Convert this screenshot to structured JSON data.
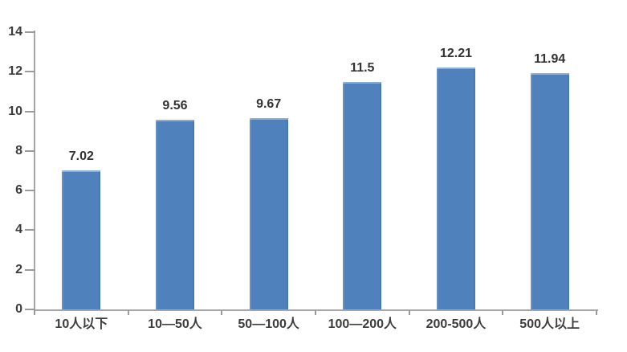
{
  "chart_style": {
    "bar_color": "#4f81bd",
    "axis_color": "#a6a6a6",
    "tick_color": "#9a9a9a",
    "label_color": "#3d3d3d",
    "value_label_color": "#333333",
    "background": "#ffffff"
  },
  "chart_data": {
    "type": "bar",
    "title": "",
    "xlabel": "",
    "ylabel": "",
    "categories": [
      "10人以下",
      "10—50人",
      "50—100人",
      "100—200人",
      "200-500人",
      "500人以上"
    ],
    "values": [
      7.02,
      9.56,
      9.67,
      11.5,
      12.21,
      11.94
    ],
    "value_labels": [
      "7.02",
      "9.56",
      "9.67",
      "11.5",
      "12.21",
      "11.94"
    ],
    "ylim": [
      0,
      14
    ],
    "yticks": [
      0,
      2,
      4,
      6,
      8,
      10,
      12,
      14
    ],
    "ytick_labels": [
      "0",
      "2",
      "4",
      "6",
      "8",
      "10",
      "12",
      "14"
    ],
    "grid": false,
    "legend": null,
    "legend_position": "none"
  }
}
